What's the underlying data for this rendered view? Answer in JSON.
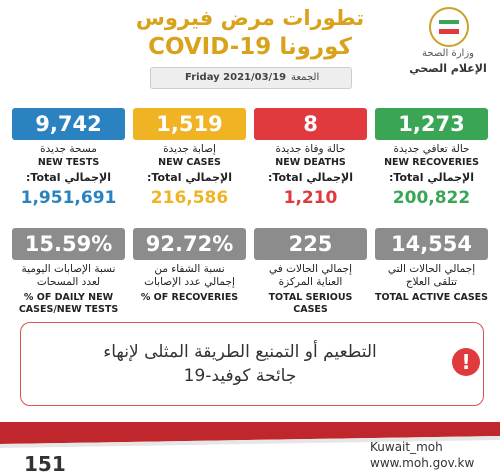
{
  "header": {
    "title_line1": "تطورات مرض فيروس",
    "title_line2": "كورونا COVID-19",
    "ministry": "وزارة الصحة",
    "department": "الإعلام الصحي"
  },
  "date": {
    "date": "Friday 2021/03/19",
    "day": "الجمعة"
  },
  "cards": [
    {
      "value": "9,742",
      "label_ar": "مسحة جديدة",
      "label_en": "NEW TESTS",
      "total_label": "الإجمالي Total:",
      "total": "1,951,691",
      "color": "#2b82c0"
    },
    {
      "value": "1,519",
      "label_ar": "إصابة جديدة",
      "label_en": "NEW CASES",
      "total_label": "الإجمالي Total:",
      "total": "216,586",
      "color": "#f0b323"
    },
    {
      "value": "8",
      "label_ar": "حالة وفاة جديدة",
      "label_en": "NEW DEATHS",
      "total_label": "الإجمالي Total:",
      "total": "1,210",
      "color": "#e0393e"
    },
    {
      "value": "1,273",
      "label_ar": "حالة تعافي جديدة",
      "label_en": "NEW RECOVERIES",
      "total_label": "الإجمالي Total:",
      "total": "200,822",
      "color": "#3aa655"
    }
  ],
  "rates": [
    {
      "value": "15.59%",
      "label_ar": "نسبة الإصابات اليومية لعدد المسحات",
      "label_en": "% OF DAILY NEW CASES/NEW TESTS"
    },
    {
      "value": "92.72%",
      "label_ar": "نسبة الشفاء من إجمالي عدد الإصابات",
      "label_en": "% OF RECOVERIES"
    },
    {
      "value": "225",
      "label_ar": "إجمالي الحالات في العناية المركزة",
      "label_en": "TOTAL SERIOUS CASES"
    },
    {
      "value": "14,554",
      "label_ar": "إجمالي الحالات التي تتلقى العلاج",
      "label_en": "TOTAL ACTIVE CASES"
    }
  ],
  "message": {
    "line1": "التطعيم أو التمنيع الطريقة المثلى لإنهاء",
    "line2": "جائحة كوفيد-19"
  },
  "footer": {
    "handle": "Kuwait_moh",
    "website": "www.moh.gov.kw",
    "hotline": "151"
  }
}
